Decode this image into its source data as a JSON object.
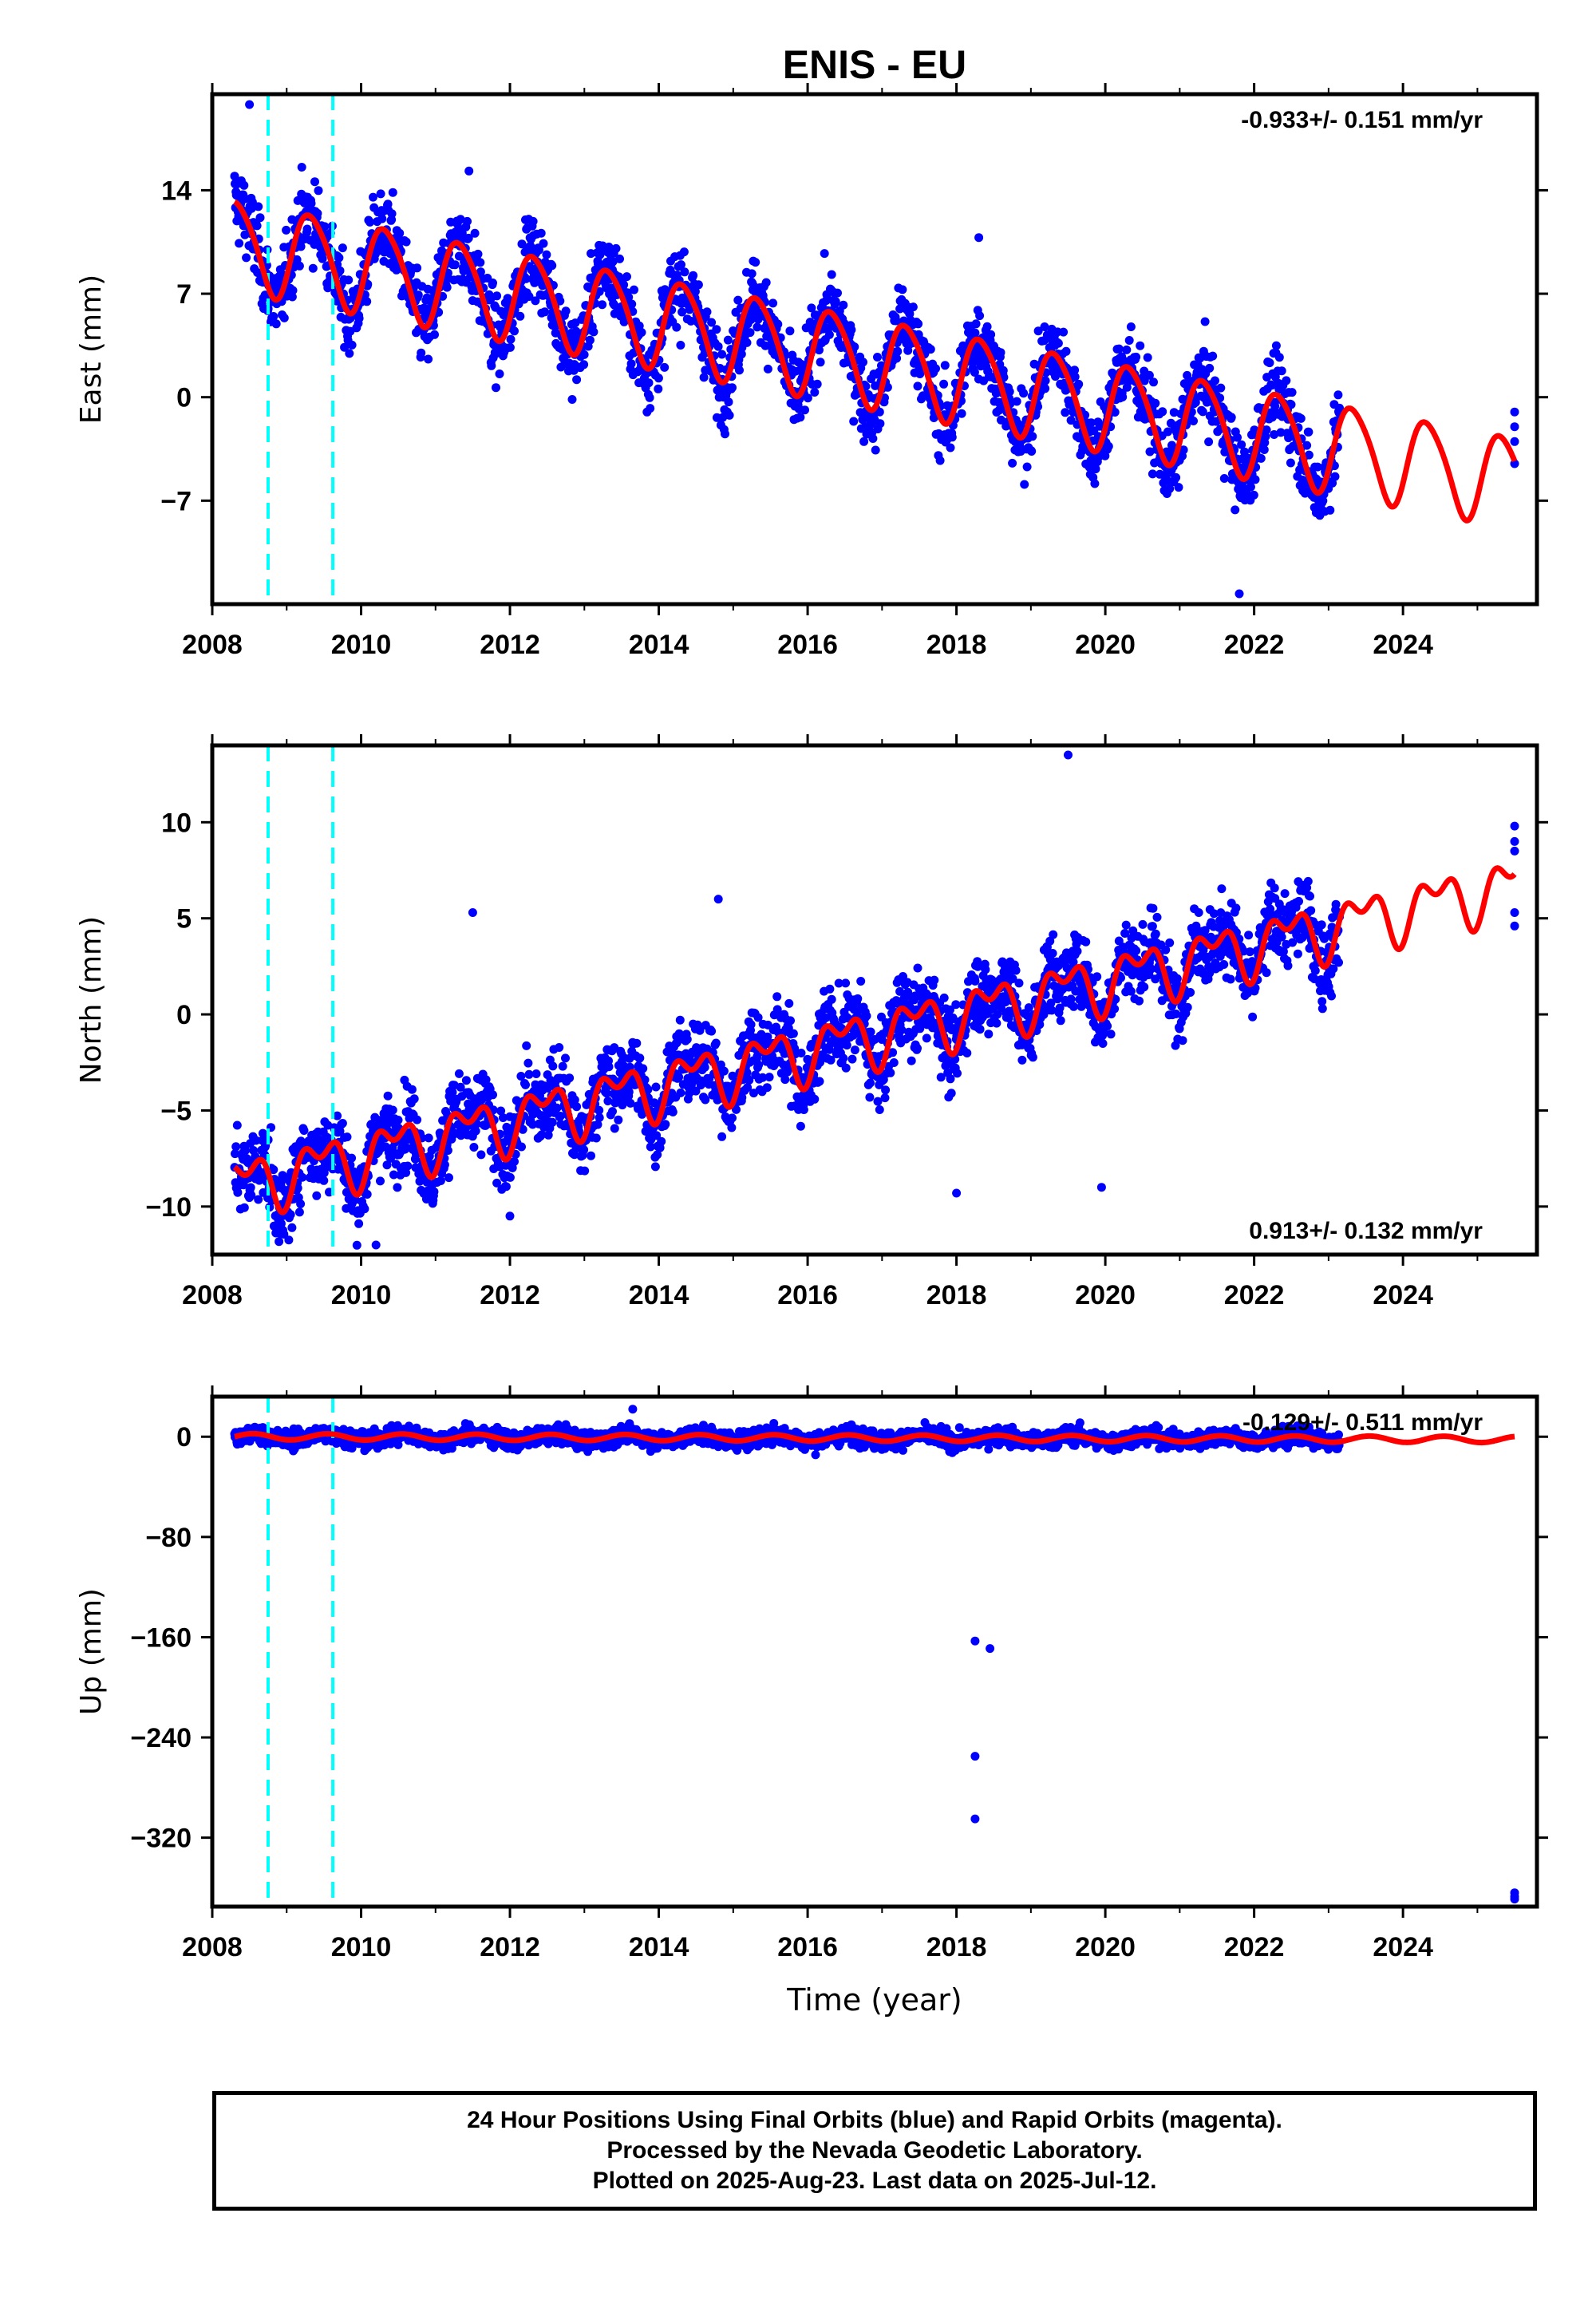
{
  "chart_data": [
    {
      "type": "scatter",
      "title": "ENIS - EU",
      "ylabel": "East (mm)",
      "xlabel": "",
      "xlim": [
        2008.0,
        2025.8
      ],
      "ylim": [
        -14,
        20.5
      ],
      "xticks": [
        2008,
        2010,
        2012,
        2014,
        2016,
        2018,
        2020,
        2022,
        2024
      ],
      "yticks": [
        -7,
        0,
        7,
        14
      ],
      "rate_label": "-0.933+/- 0.151 mm/yr",
      "rate_position": "top-right",
      "model": {
        "intercept": 10.4,
        "slope": -0.933,
        "annual_amp": 3.0,
        "annual_peak": 0.33,
        "semi_amp": 0.4,
        "semi_peak": 0.15,
        "noise": 1.3
      },
      "data_range": [
        2008.3,
        2023.15
      ],
      "extra_points": [
        [
          2025.5,
          -1.0
        ],
        [
          2025.5,
          -2.0
        ],
        [
          2025.5,
          -3.0
        ],
        [
          2025.5,
          -4.5
        ],
        [
          2008.5,
          19.8
        ],
        [
          2011.45,
          15.3
        ],
        [
          2018.3,
          10.8
        ],
        [
          2021.8,
          -13.3
        ]
      ],
      "breaks": [
        2008.75,
        2009.62
      ],
      "colors": {
        "points": "#0000ff",
        "model": "#ff0000",
        "breaks": "#00ffff"
      }
    },
    {
      "type": "scatter",
      "title": "",
      "ylabel": "North (mm)",
      "xlabel": "",
      "xlim": [
        2008.0,
        2025.8
      ],
      "ylim": [
        -12.5,
        14
      ],
      "xticks": [
        2008,
        2010,
        2012,
        2014,
        2016,
        2018,
        2020,
        2022,
        2024
      ],
      "yticks": [
        -10,
        -5,
        0,
        5,
        10
      ],
      "rate_label": "0.913+/- 0.132 mm/yr",
      "rate_position": "bottom-right",
      "model": {
        "intercept": -8.9,
        "slope": 0.913,
        "annual_amp": 1.2,
        "annual_peak": 0.45,
        "semi_amp": 0.8,
        "semi_peak": 0.2,
        "noise": 1.0
      },
      "data_range": [
        2008.3,
        2023.15
      ],
      "extra_points": [
        [
          2025.5,
          9.8
        ],
        [
          2025.5,
          9.0
        ],
        [
          2025.5,
          8.5
        ],
        [
          2025.5,
          5.3
        ],
        [
          2025.5,
          4.6
        ],
        [
          2019.5,
          13.5
        ],
        [
          2011.5,
          5.3
        ],
        [
          2014.8,
          6.0
        ],
        [
          2019.95,
          -9.0
        ],
        [
          2010.2,
          -12.0
        ],
        [
          2012.0,
          -10.5
        ],
        [
          2018.0,
          -9.3
        ]
      ],
      "breaks": [
        2008.75,
        2009.62
      ],
      "colors": {
        "points": "#0000ff",
        "model": "#ff0000",
        "breaks": "#00ffff"
      }
    },
    {
      "type": "scatter",
      "title": "",
      "ylabel": "Up (mm)",
      "xlabel": "Time (year)",
      "xlim": [
        2008.0,
        2025.8
      ],
      "ylim": [
        -375,
        32
      ],
      "xticks": [
        2008,
        2010,
        2012,
        2014,
        2016,
        2018,
        2020,
        2022,
        2024
      ],
      "yticks": [
        -320,
        -240,
        -160,
        -80,
        0
      ],
      "rate_label": "-0.129+/- 0.511 mm/yr",
      "rate_position": "top-right",
      "model": {
        "intercept": 0.0,
        "slope": -0.129,
        "annual_amp": 2.5,
        "annual_peak": 0.55,
        "semi_amp": 0.0,
        "semi_peak": 0.0,
        "noise": 3.5
      },
      "data_range": [
        2008.3,
        2023.15
      ],
      "extra_points": [
        [
          2018.25,
          -163
        ],
        [
          2018.45,
          -169
        ],
        [
          2018.25,
          -255
        ],
        [
          2018.25,
          -305
        ],
        [
          2025.5,
          -364
        ],
        [
          2025.5,
          -367
        ],
        [
          2025.5,
          -369
        ],
        [
          2013.65,
          22
        ]
      ],
      "breaks": [
        2008.75,
        2009.62
      ],
      "colors": {
        "points": "#0000ff",
        "model": "#ff0000",
        "breaks": "#00ffff"
      }
    }
  ],
  "footer": {
    "line1": "24 Hour Positions Using Final Orbits (blue) and Rapid Orbits (magenta).",
    "line2": "Processed by the Nevada Geodetic Laboratory.",
    "line3": "Plotted on 2025-Aug-23. Last data on 2025-Jul-12."
  }
}
